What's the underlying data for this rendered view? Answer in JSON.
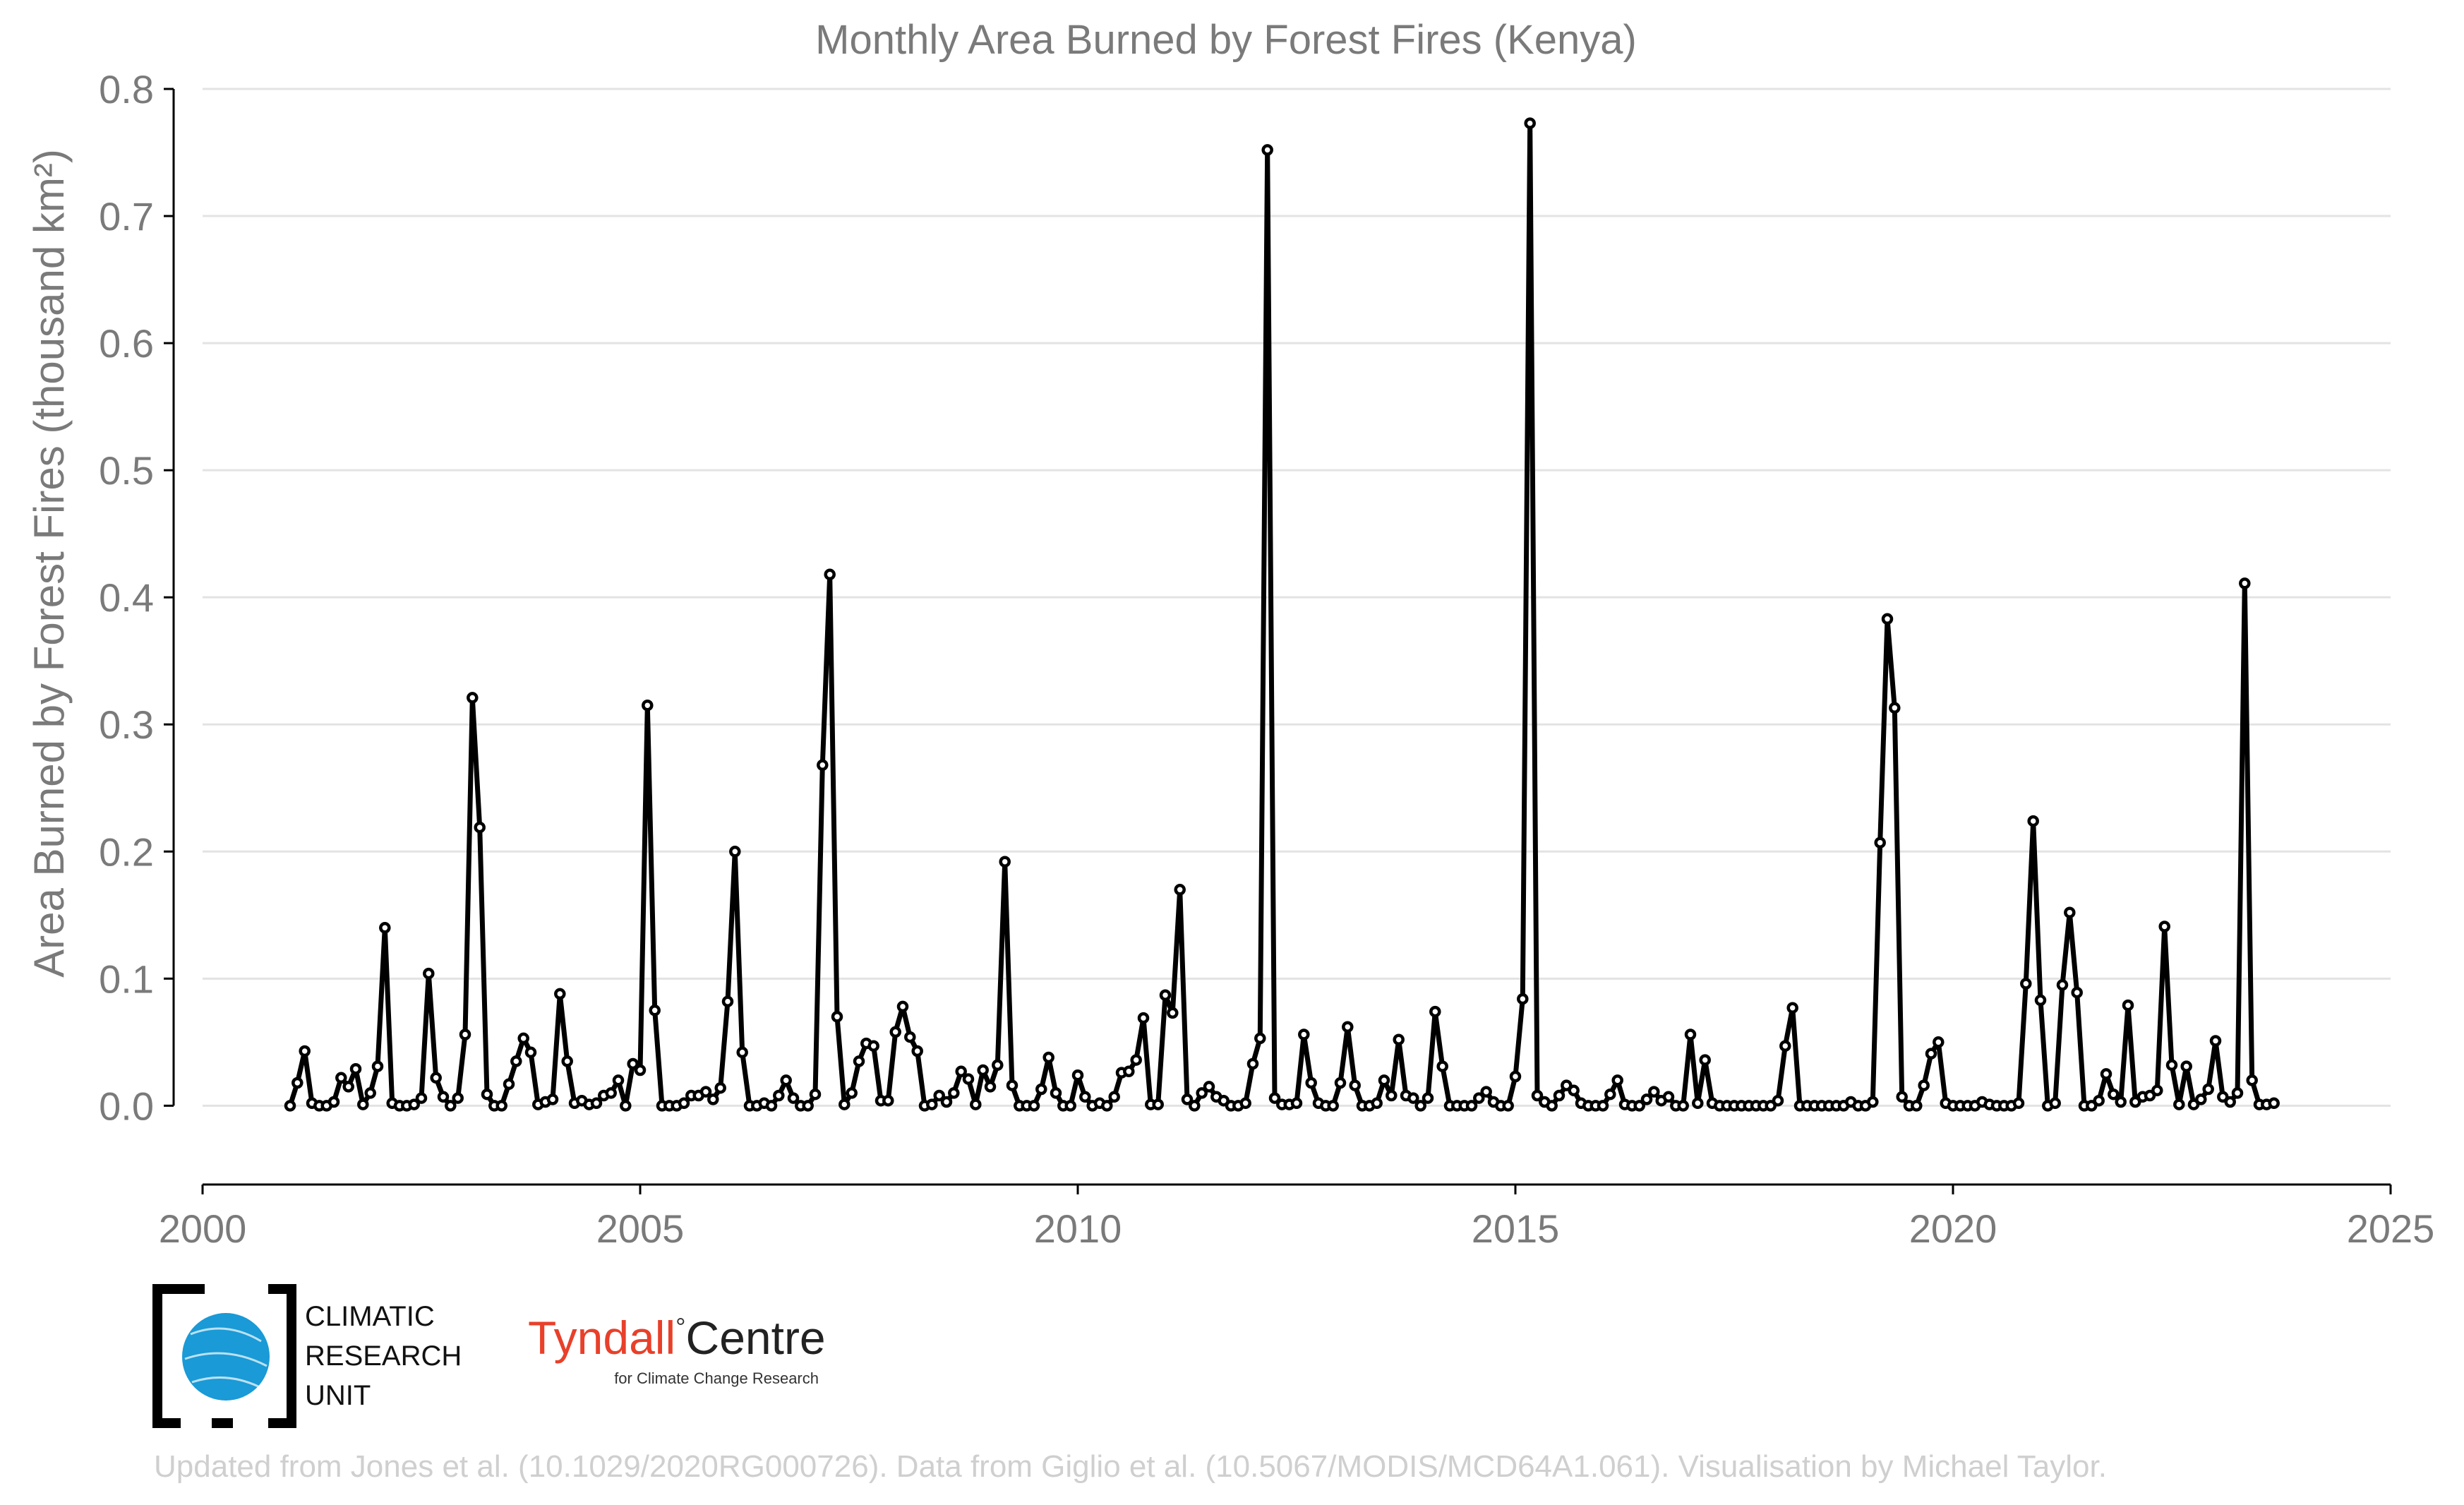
{
  "colors": {
    "line": "#000000",
    "marker_fill": "#ffffff",
    "grid": "#e3e3e3",
    "text": "#7a7a7a",
    "credit": "#cfcfcf",
    "cru_blue": "#1a9ad6",
    "tyndall_red": "#e8402a"
  },
  "logos": {
    "cru": {
      "line1": "CLIMATIC",
      "line2": "RESEARCH",
      "line3": "UNIT"
    },
    "tyndall": {
      "name_a": "Tyndall",
      "name_b": "Centre",
      "sub": "for Climate Change Research"
    }
  },
  "credit": "Updated from Jones et al. (10.1029/2020RG000726). Data from Giglio et al. (10.5067/MODIS/MCD64A1.061). Visualisation by Michael Taylor.",
  "chart_data": {
    "type": "line",
    "title": "Monthly Area Burned by Forest Fires (Kenya)",
    "ylabel": "Area Burned by Forest Fires (thousand km²)",
    "xlabel": "",
    "xlim": [
      2000,
      2025
    ],
    "ylim": [
      -0.062,
      0.8
    ],
    "xticks": [
      2000,
      2005,
      2010,
      2015,
      2020,
      2025
    ],
    "yticks": [
      "0.0",
      "0.1",
      "0.2",
      "0.3",
      "0.4",
      "0.5",
      "0.6",
      "0.7",
      "0.8"
    ],
    "grid": "horizontal",
    "marker": "open-circle",
    "start": "2001-01",
    "series": [
      {
        "values": [
          0.0,
          0.018,
          0.043,
          0.002,
          0.0,
          0.0,
          0.003,
          0.022,
          0.015,
          0.029,
          0.001,
          0.01,
          0.031,
          0.14,
          0.002,
          0.0,
          0.0,
          0.001,
          0.006,
          0.104,
          0.022,
          0.007,
          0.0,
          0.006,
          0.056,
          0.321,
          0.219,
          0.009,
          0.0,
          0.0,
          0.017,
          0.035,
          0.053,
          0.042,
          0.001,
          0.003,
          0.005,
          0.088,
          0.035,
          0.002,
          0.004,
          0.001,
          0.002,
          0.008,
          0.01,
          0.02,
          0.0,
          0.033,
          0.028,
          0.315,
          0.075,
          0.0,
          0.0,
          0.0,
          0.002,
          0.008,
          0.008,
          0.011,
          0.005,
          0.014,
          0.082,
          0.2,
          0.042,
          0.0,
          0.0,
          0.002,
          0.0,
          0.008,
          0.02,
          0.006,
          0.0,
          0.0,
          0.009,
          0.268,
          0.418,
          0.07,
          0.001,
          0.01,
          0.035,
          0.049,
          0.047,
          0.004,
          0.004,
          0.058,
          0.078,
          0.054,
          0.043,
          0.0,
          0.001,
          0.008,
          0.003,
          0.01,
          0.027,
          0.021,
          0.001,
          0.028,
          0.015,
          0.032,
          0.192,
          0.016,
          0.0,
          0.0,
          0.0,
          0.013,
          0.038,
          0.01,
          0.0,
          0.0,
          0.024,
          0.007,
          0.0,
          0.002,
          0.0,
          0.007,
          0.026,
          0.027,
          0.036,
          0.069,
          0.001,
          0.001,
          0.087,
          0.073,
          0.17,
          0.005,
          0.0,
          0.01,
          0.015,
          0.007,
          0.004,
          0.0,
          0.0,
          0.002,
          0.033,
          0.053,
          0.752,
          0.006,
          0.001,
          0.001,
          0.002,
          0.056,
          0.018,
          0.002,
          0.0,
          0.0,
          0.018,
          0.062,
          0.016,
          0.0,
          0.0,
          0.002,
          0.02,
          0.008,
          0.052,
          0.008,
          0.006,
          0.0,
          0.006,
          0.074,
          0.031,
          0.0,
          0.0,
          0.0,
          0.0,
          0.006,
          0.011,
          0.003,
          0.0,
          0.0,
          0.023,
          0.084,
          0.773,
          0.008,
          0.003,
          0.0,
          0.008,
          0.016,
          0.012,
          0.002,
          0.0,
          0.0,
          0.0,
          0.009,
          0.02,
          0.001,
          0.0,
          0.0,
          0.005,
          0.011,
          0.004,
          0.007,
          0.0,
          0.0,
          0.056,
          0.002,
          0.036,
          0.002,
          0.0,
          0.0,
          0.0,
          0.0,
          0.0,
          0.0,
          0.0,
          0.0,
          0.004,
          0.047,
          0.077,
          0.0,
          0.0,
          0.0,
          0.0,
          0.0,
          0.0,
          0.0,
          0.003,
          0.0,
          0.0,
          0.003,
          0.207,
          0.383,
          0.313,
          0.007,
          0.0,
          0.0,
          0.016,
          0.041,
          0.05,
          0.002,
          0.0,
          0.0,
          0.0,
          0.0,
          0.003,
          0.001,
          0.0,
          0.0,
          0.0,
          0.002,
          0.096,
          0.224,
          0.083,
          0.0,
          0.002,
          0.095,
          0.152,
          0.089,
          0.0,
          0.0,
          0.004,
          0.025,
          0.009,
          0.003,
          0.079,
          0.003,
          0.007,
          0.008,
          0.012,
          0.141,
          0.032,
          0.001,
          0.031,
          0.001,
          0.005,
          0.013,
          0.051,
          0.007,
          0.003,
          0.01,
          0.411,
          0.02,
          0.001,
          0.001,
          0.002
        ]
      }
    ]
  }
}
